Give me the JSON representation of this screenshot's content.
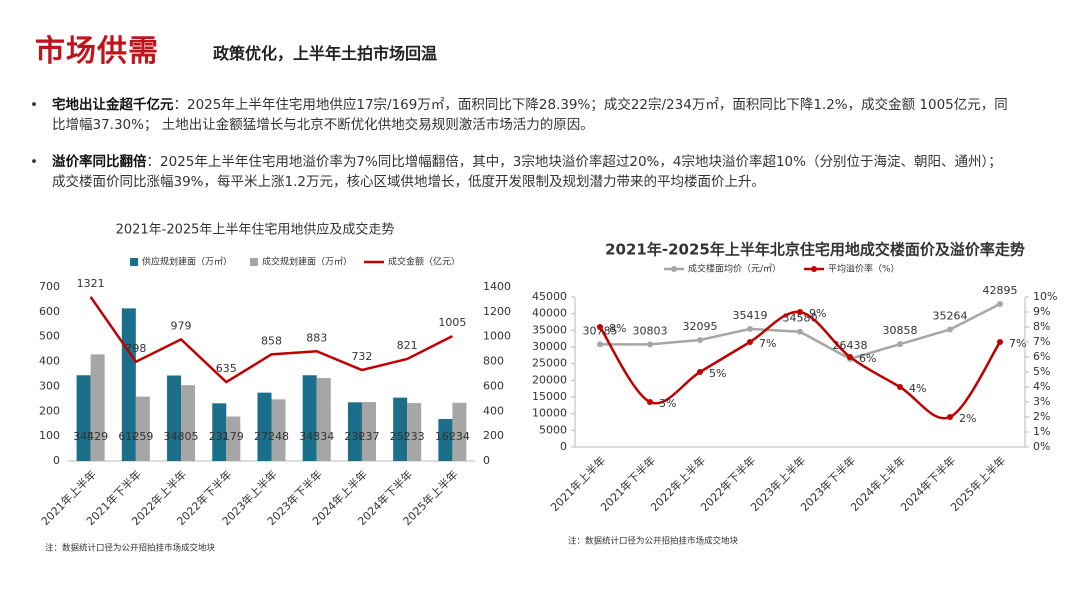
{
  "header": {
    "title": "市场供需",
    "subtitle": "政策优化，上半年土拍市场回温"
  },
  "bullets": [
    {
      "keyword": "宅地出让金超千亿元",
      "text": "：2025年上半年住宅用地供应17宗/169万㎡，面积同比下降28.39%；成交22宗/234万㎡，面积同比下降1.2%，成交金额 1005亿元，同比增幅37.30%； 土地出让金额猛增长与北京不断优化供地交易规则激活市场活力的原因。"
    },
    {
      "keyword": "溢价率同比翻倍",
      "text": "：2025年上半年住宅用地溢价率为7%同比增幅翻倍，其中，3宗地块溢价率超过20%，4宗地块溢价率超10%（分别位于海淀、朝阳、通州）；成交楼面价同比涨幅39%，每平米上涨1.2万元，核心区域供地增长，低度开发限制及规划潜力带来的平均楼面价上升。"
    }
  ],
  "chart_data": [
    {
      "type": "bar",
      "title": "2021年-2025年上半年住宅用地供应及成交走势",
      "categories": [
        "2021年上半年",
        "2021年下半年",
        "2022年上半年",
        "2022年下半年",
        "2023年上半年",
        "2023年下半年",
        "2024年上半年",
        "2024年下半年",
        "2025年上半年"
      ],
      "series": [
        {
          "name": "供应规划建面（万㎡）",
          "color": "#1b6f8a",
          "values": [
            345,
            614,
            344,
            232,
            275,
            345,
            236,
            255,
            169
          ]
        },
        {
          "name": "成交规划建面（万㎡）",
          "color": "#a6a6a6",
          "values": [
            429,
            259,
            305,
            179,
            248,
            334,
            237,
            233,
            234
          ]
        },
        {
          "name": "成交金额（亿元）",
          "color": "#c00000",
          "type": "line",
          "axis": "y2",
          "values": [
            1321,
            798,
            979,
            635,
            858,
            883,
            732,
            821,
            1005
          ]
        }
      ],
      "ylim": [
        0,
        700
      ],
      "yticks": [
        0,
        100,
        200,
        300,
        400,
        500,
        600,
        700
      ],
      "y2lim": [
        0,
        1400
      ],
      "y2ticks": [
        0,
        200,
        400,
        600,
        800,
        1000,
        1200,
        1400
      ],
      "grid": false,
      "legend": "top",
      "note": "注：数据统计口径为公开招拍挂市场成交地块"
    },
    {
      "type": "line",
      "title": "2021年-2025年上半年北京住宅用地成交楼面价及溢价率走势",
      "categories": [
        "2021年上半年",
        "2021年下半年",
        "2022年上半年",
        "2022年下半年",
        "2023年上半年",
        "2023年下半年",
        "2024年上半年",
        "2024年下半年",
        "2025年上半年"
      ],
      "series": [
        {
          "name": "成交楼面均价（元/㎡）",
          "color": "#a6a6a6",
          "values": [
            30785,
            30803,
            32095,
            35419,
            34580,
            26438,
            30858,
            35264,
            42895
          ]
        },
        {
          "name": "平均溢价率（%）",
          "color": "#c00000",
          "axis": "y2",
          "smooth": true,
          "values": [
            8,
            3,
            5,
            7,
            9,
            6,
            4,
            2,
            7
          ],
          "value_labels": [
            "8%",
            "3%",
            "5%",
            "7%",
            "9%",
            "6%",
            "4%",
            "2%",
            "7%"
          ]
        }
      ],
      "ylim": [
        0,
        45000
      ],
      "yticks": [
        0,
        5000,
        10000,
        15000,
        20000,
        25000,
        30000,
        35000,
        40000,
        45000
      ],
      "y2lim": [
        0,
        10
      ],
      "y2ticks": [
        {
          "value": 0,
          "label": "0%"
        },
        {
          "value": 1,
          "label": "1%"
        },
        {
          "value": 2,
          "label": "2%"
        },
        {
          "value": 3,
          "label": "3%"
        },
        {
          "value": 4,
          "label": "4%"
        },
        {
          "value": 5,
          "label": "5%"
        },
        {
          "value": 6,
          "label": "6%"
        },
        {
          "value": 7,
          "label": "7%"
        },
        {
          "value": 8,
          "label": "8%"
        },
        {
          "value": 9,
          "label": "9%"
        },
        {
          "value": 10,
          "label": "10%"
        }
      ],
      "grid": false,
      "legend": "top",
      "note": "注：数据统计口径为公开招拍挂市场成交地块"
    }
  ]
}
